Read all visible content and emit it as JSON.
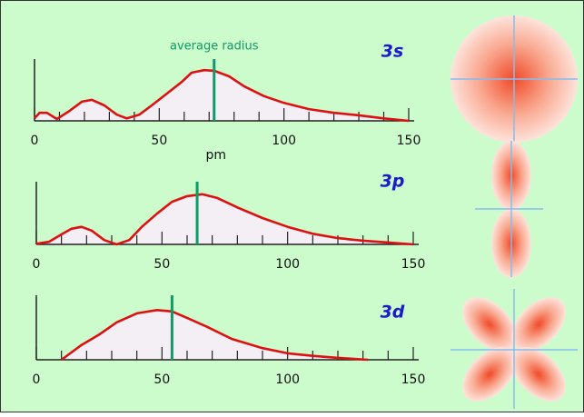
{
  "chart_data": [
    {
      "type": "line",
      "title": "3s",
      "annotation": "average radius",
      "xlabel": "pm",
      "x": [
        0,
        2,
        5,
        9,
        14,
        19,
        23,
        28,
        33,
        37,
        42,
        47,
        53,
        59,
        63,
        68,
        72,
        78,
        84,
        92,
        100,
        110,
        120,
        130,
        140,
        150
      ],
      "values": [
        0.04,
        0.13,
        0.13,
        0.03,
        0.16,
        0.31,
        0.34,
        0.25,
        0.1,
        0.04,
        0.1,
        0.25,
        0.44,
        0.63,
        0.78,
        0.82,
        0.81,
        0.72,
        0.56,
        0.4,
        0.29,
        0.19,
        0.13,
        0.09,
        0.04,
        0
      ],
      "color": "#dd1111",
      "fill": "#f4eff5",
      "average_radius": 72,
      "average_color": "#119966",
      "xlim": [
        0,
        150
      ],
      "ylim": [
        0,
        1
      ],
      "xticks": [
        0,
        50,
        100,
        150
      ],
      "minor_xticks": [
        10,
        20,
        30,
        40,
        60,
        70,
        80,
        90,
        110,
        120,
        130,
        140
      ]
    },
    {
      "type": "line",
      "title": "3p",
      "x": [
        0,
        5,
        10,
        14,
        18,
        22,
        27,
        32,
        37,
        42,
        48,
        54,
        60,
        66,
        72,
        80,
        90,
        100,
        110,
        120,
        130,
        140,
        150
      ],
      "values": [
        0.01,
        0.04,
        0.16,
        0.25,
        0.28,
        0.22,
        0.07,
        0,
        0.07,
        0.28,
        0.49,
        0.68,
        0.77,
        0.8,
        0.74,
        0.59,
        0.42,
        0.28,
        0.17,
        0.1,
        0.06,
        0.03,
        0
      ],
      "color": "#dd1111",
      "fill": "#f4eff5",
      "average_radius": 64,
      "average_color": "#119966",
      "xlim": [
        0,
        150
      ],
      "ylim": [
        0,
        1
      ],
      "xticks": [
        0,
        50,
        100,
        150
      ],
      "minor_xticks": [
        10,
        20,
        30,
        40,
        60,
        70,
        80,
        90,
        110,
        120,
        130,
        140
      ]
    },
    {
      "type": "line",
      "title": "3d",
      "x": [
        10,
        18,
        25,
        32,
        40,
        48,
        54,
        60,
        68,
        78,
        90,
        100,
        110,
        120,
        132
      ],
      "values": [
        0,
        0.23,
        0.39,
        0.58,
        0.72,
        0.77,
        0.75,
        0.65,
        0.51,
        0.32,
        0.18,
        0.1,
        0.06,
        0.03,
        0
      ],
      "color": "#dd1111",
      "fill": "#f4eff5",
      "average_radius": 54,
      "average_color": "#119966",
      "xlim": [
        0,
        150
      ],
      "ylim": [
        0,
        1
      ],
      "xticks": [
        0,
        50,
        100,
        150
      ],
      "minor_xticks": [
        10,
        20,
        30,
        40,
        60,
        70,
        80,
        90,
        110,
        120,
        130,
        140
      ]
    }
  ]
}
